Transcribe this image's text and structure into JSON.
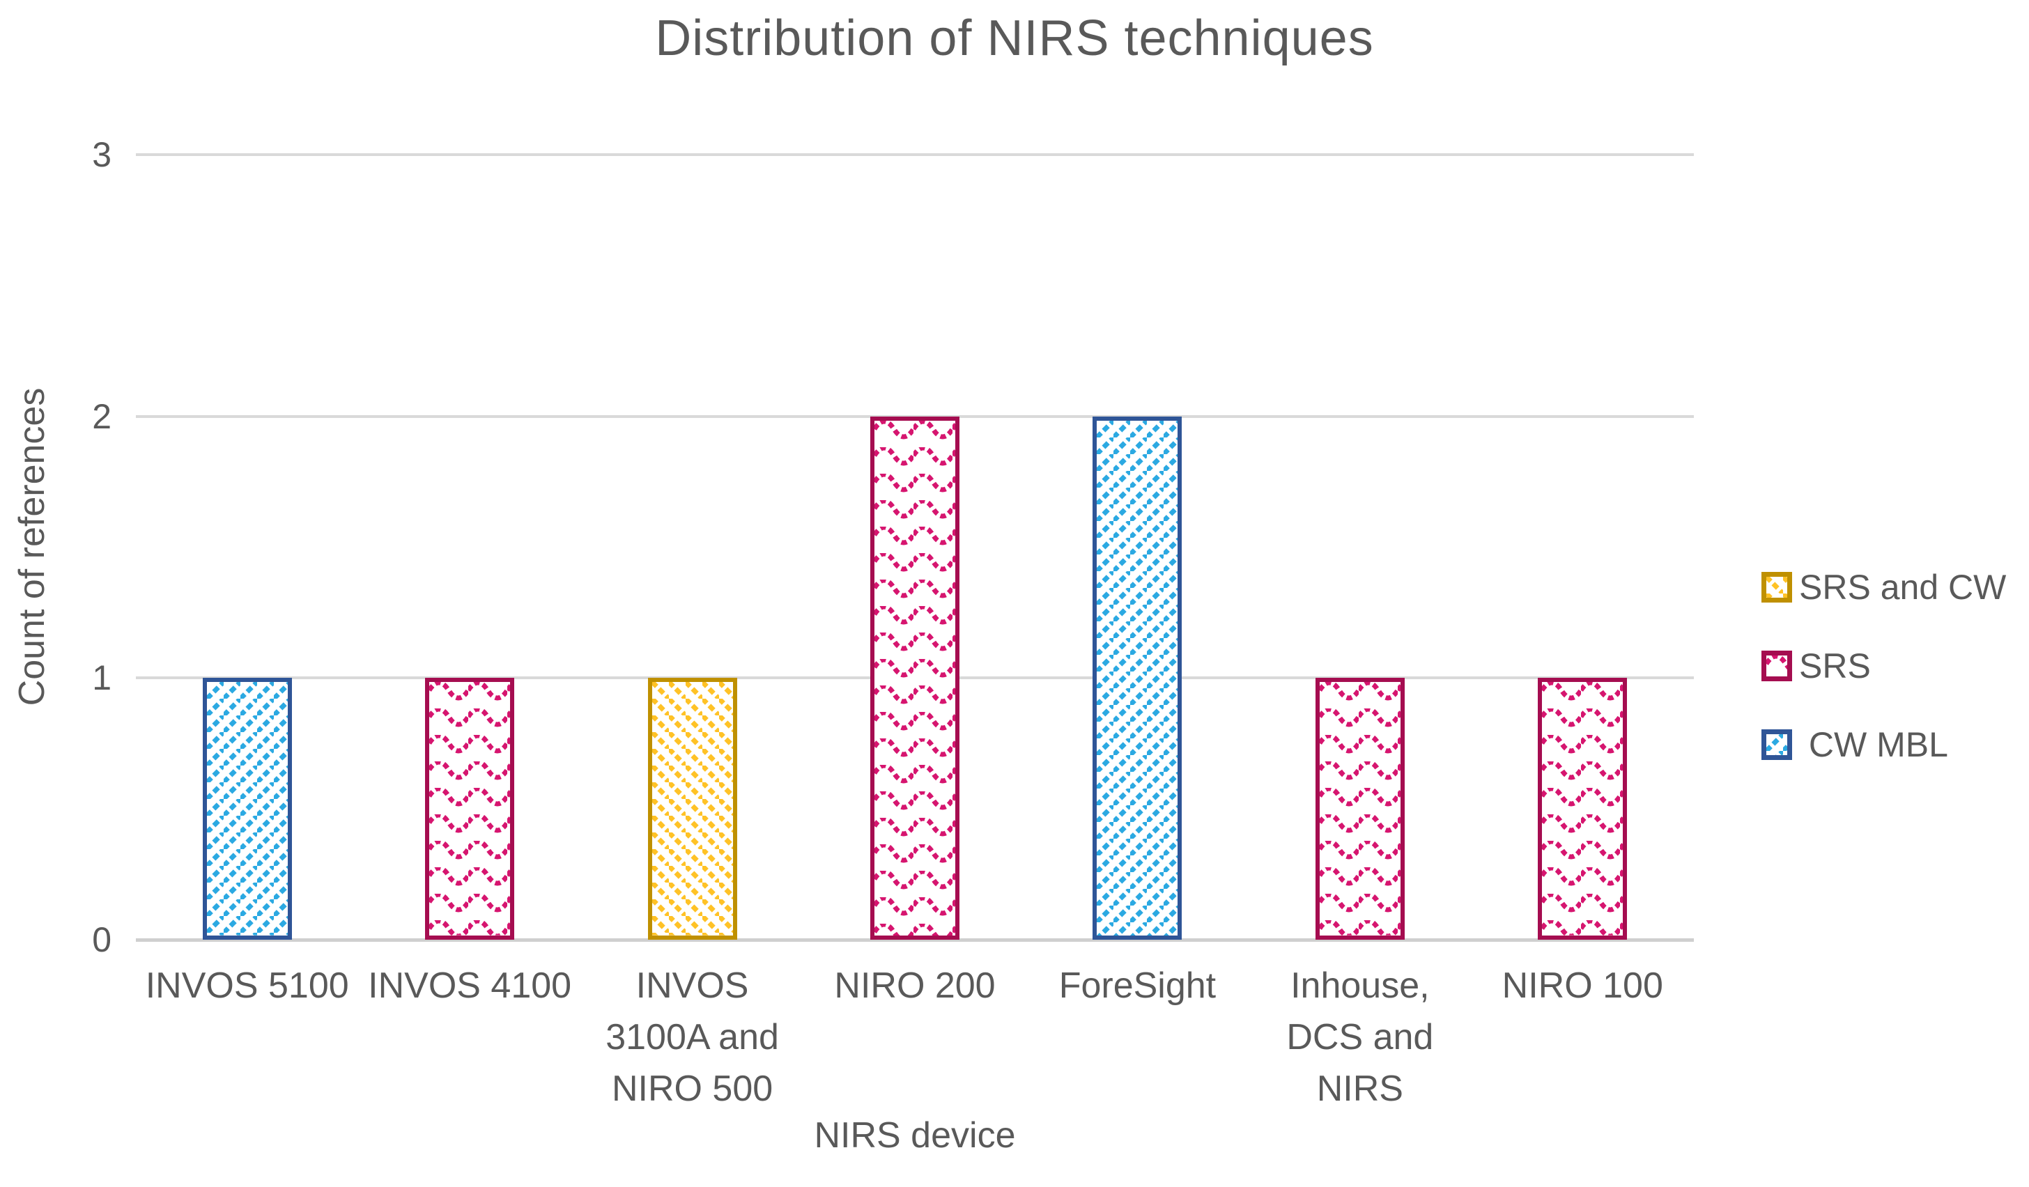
{
  "chart_data": {
    "type": "bar",
    "title": "Distribution of NIRS techniques",
    "xlabel": "NIRS device",
    "ylabel": "Count of references",
    "ylim": [
      0,
      3
    ],
    "yticks": [
      0,
      1,
      2,
      3
    ],
    "grid": true,
    "legend_position": "right",
    "categories": [
      "INVOS 5100",
      "INVOS 4100",
      "INVOS 3100A and NIRO 500",
      "NIRO 200",
      "ForeSight",
      "Inhouse, DCS and NIRS",
      "NIRO 100"
    ],
    "category_label_lines": [
      [
        "INVOS 5100"
      ],
      [
        "INVOS 4100"
      ],
      [
        "INVOS",
        "3100A and",
        "NIRO 500"
      ],
      [
        "NIRO 200"
      ],
      [
        "ForeSight"
      ],
      [
        "Inhouse,",
        "DCS and",
        "NIRS"
      ],
      [
        "NIRO 100"
      ]
    ],
    "values": [
      1,
      1,
      1,
      2,
      2,
      1,
      1
    ],
    "bar_series": [
      "CW MBL",
      "SRS",
      "SRS and CW",
      "SRS",
      "CW MBL",
      "SRS",
      "SRS"
    ],
    "series_styles": {
      "SRS and CW": {
        "border": "#BF9000",
        "fill": "#FFC226",
        "pattern": "diagonal-down"
      },
      "SRS": {
        "border": "#A50D50",
        "fill": "#D6156F",
        "pattern": "wave"
      },
      "CW MBL": {
        "border": "#2F5597",
        "fill": "#2BA9E2",
        "pattern": "diagonal-up"
      }
    },
    "legend": [
      "SRS and CW",
      "SRS",
      " CW MBL"
    ]
  },
  "colors": {
    "text": "#595959",
    "gridline": "#D9D9D9",
    "background": "#ffffff"
  }
}
